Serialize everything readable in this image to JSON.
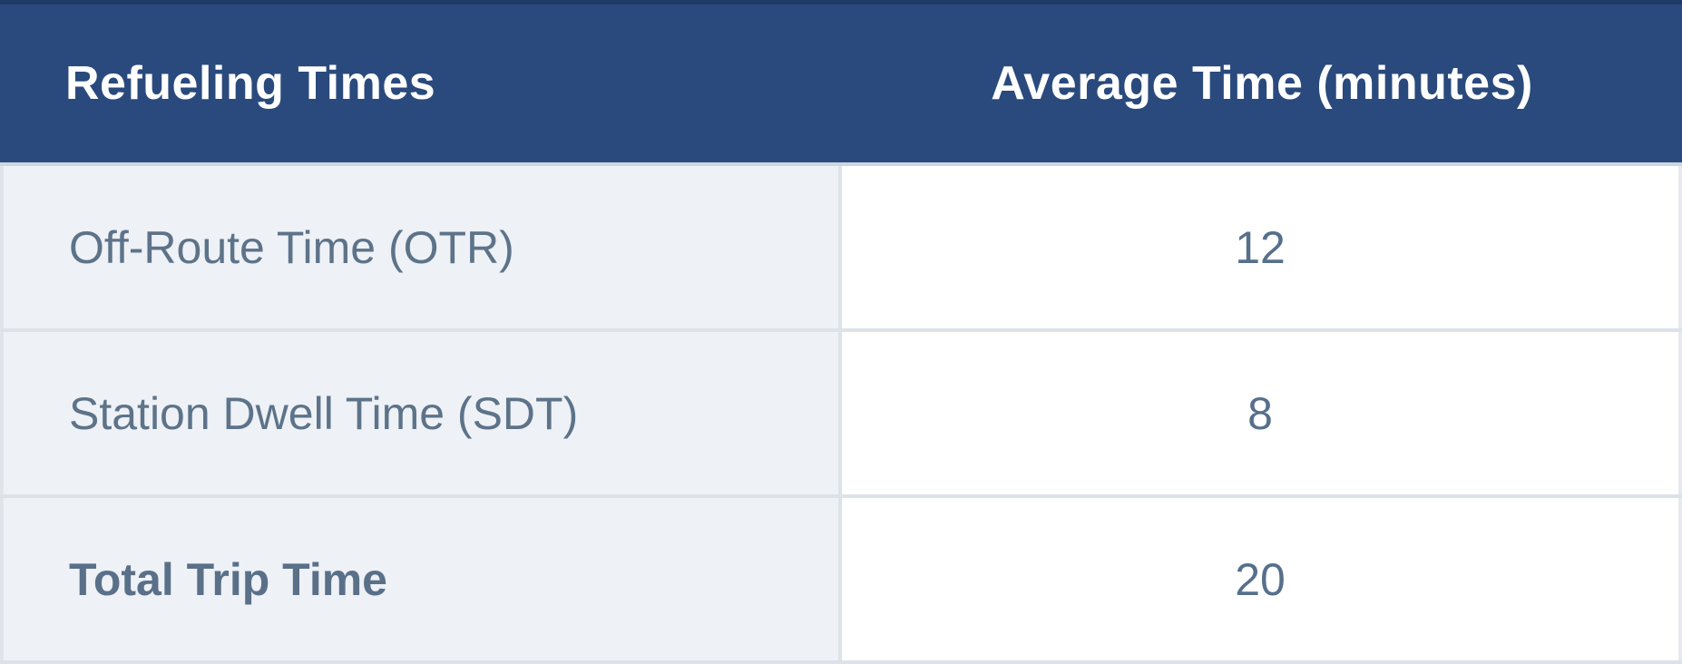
{
  "table": {
    "columns": [
      {
        "label": "Refueling Times"
      },
      {
        "label": "Average Time (minutes)"
      }
    ],
    "rows": [
      {
        "label": "Off-Route Time (OTR)",
        "value": "12",
        "bold": false
      },
      {
        "label": "Station Dwell Time (SDT)",
        "value": "8",
        "bold": false
      },
      {
        "label": "Total Trip Time",
        "value": "20",
        "bold": true
      }
    ]
  },
  "colors": {
    "header_background": "#2a4a7d",
    "header_text": "#ffffff",
    "header_top_border": "#1e3a66",
    "label_cell_background": "#eef1f6",
    "value_cell_background": "#ffffff",
    "grid_border": "#dde2e9",
    "body_text": "#5d7389"
  },
  "chart_data": {
    "type": "table",
    "title": "Refueling Times",
    "columns": [
      "Refueling Times",
      "Average Time (minutes)"
    ],
    "rows": [
      [
        "Off-Route Time (OTR)",
        12
      ],
      [
        "Station Dwell Time (SDT)",
        8
      ],
      [
        "Total Trip Time",
        20
      ]
    ],
    "notes": "Total Trip Time row label is bold; values column is center-aligned; header row has dark blue background with white bold text"
  }
}
